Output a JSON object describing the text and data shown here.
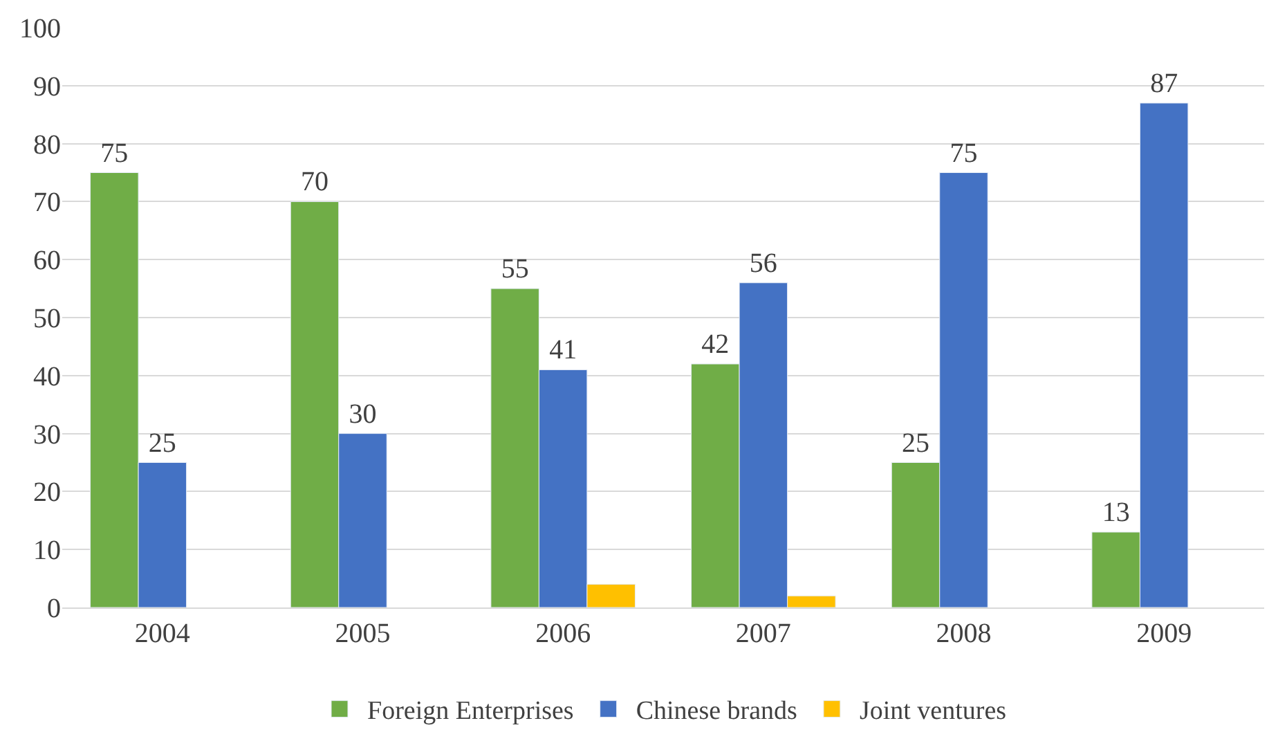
{
  "chart_data": {
    "type": "bar",
    "categories": [
      "2004",
      "2005",
      "2006",
      "2007",
      "2008",
      "2009"
    ],
    "series": [
      {
        "name": "Foreign Enterprises",
        "color": "#70ad47",
        "values": [
          75,
          70,
          55,
          42,
          25,
          13
        ],
        "value_labels": [
          "75",
          "70",
          "55",
          "42",
          "25",
          "13"
        ]
      },
      {
        "name": "Chinese brands",
        "color": "#4472c4",
        "values": [
          25,
          30,
          41,
          56,
          75,
          87
        ],
        "value_labels": [
          "25",
          "30",
          "41",
          "56",
          "75",
          "87"
        ]
      },
      {
        "name": "Joint ventures",
        "color": "#ffc000",
        "values": [
          null,
          null,
          4,
          2,
          null,
          null
        ]
      }
    ],
    "ylim": [
      0,
      100
    ],
    "yticks": [
      0,
      10,
      20,
      30,
      40,
      50,
      60,
      70,
      80,
      90,
      100
    ],
    "grid": "y",
    "legend": "bottom"
  }
}
